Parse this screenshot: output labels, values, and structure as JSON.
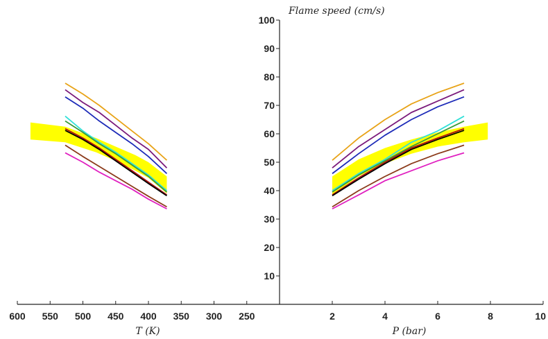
{
  "chart_data": {
    "type": "line",
    "title": "Flame speed (cm/s)",
    "left_panel": {
      "xlabel": "T (K)",
      "xlim": [
        600,
        200
      ],
      "x_ticks": [
        600,
        550,
        500,
        450,
        400,
        350,
        300,
        250
      ],
      "band_color": "#ffff00",
      "band": {
        "x": [
          580,
          527,
          480,
          450,
          420,
          400,
          372
        ],
        "lower": [
          58.0,
          57.0,
          53.5,
          50.5,
          47.0,
          44.5,
          39.0
        ],
        "upper": [
          64.0,
          62.5,
          58.5,
          55.5,
          52.5,
          50.0,
          45.0
        ]
      },
      "series": [
        {
          "color": "#e8a317",
          "x": [
            527,
            500,
            475,
            450,
            425,
            400,
            372
          ],
          "y": [
            77.8,
            74.0,
            70.0,
            65.5,
            61.0,
            56.5,
            50.7
          ]
        },
        {
          "color": "#7b1a7b",
          "x": [
            527,
            500,
            475,
            450,
            425,
            400,
            372
          ],
          "y": [
            75.5,
            71.0,
            67.5,
            63.0,
            58.5,
            54.5,
            48.0
          ]
        },
        {
          "color": "#1c2ab8",
          "x": [
            527,
            500,
            475,
            450,
            425,
            400,
            372
          ],
          "y": [
            73.0,
            69.0,
            64.5,
            60.5,
            56.5,
            52.0,
            46.0
          ]
        },
        {
          "color": "#30e0d8",
          "x": [
            527,
            500,
            475,
            450,
            425,
            400,
            372
          ],
          "y": [
            66.2,
            61.0,
            57.0,
            53.5,
            49.5,
            45.5,
            40.0
          ]
        },
        {
          "color": "#3a9a3a",
          "x": [
            527,
            500,
            475,
            450,
            425,
            400,
            372
          ],
          "y": [
            64.5,
            60.5,
            56.5,
            53.0,
            49.0,
            45.0,
            39.5
          ]
        },
        {
          "color": "#b01010",
          "x": [
            527,
            500,
            475,
            450,
            425,
            400,
            372
          ],
          "y": [
            61.8,
            58.5,
            55.0,
            51.0,
            47.0,
            43.0,
            38.5
          ]
        },
        {
          "color": "#000000",
          "x": [
            527,
            500,
            475,
            450,
            425,
            400,
            372
          ],
          "y": [
            61.2,
            58.0,
            54.5,
            50.5,
            46.5,
            42.5,
            38.2
          ]
        },
        {
          "color": "#8b3a1a",
          "x": [
            527,
            500,
            475,
            450,
            425,
            400,
            372
          ],
          "y": [
            56.0,
            52.0,
            48.5,
            45.0,
            41.5,
            38.0,
            34.3
          ]
        },
        {
          "color": "#e020c0",
          "x": [
            527,
            500,
            475,
            450,
            425,
            400,
            372
          ],
          "y": [
            53.3,
            50.0,
            46.5,
            43.5,
            40.5,
            37.0,
            33.6
          ]
        }
      ]
    },
    "right_panel": {
      "xlabel": "P (bar)",
      "xlim": [
        0,
        10
      ],
      "x_ticks": [
        2,
        4,
        6,
        8,
        10
      ],
      "band_color": "#ffff00",
      "band": {
        "x": [
          2,
          3,
          4,
          5,
          6,
          7,
          7.9
        ],
        "lower": [
          38.5,
          45.0,
          49.5,
          53.0,
          55.5,
          57.0,
          58.0
        ],
        "upper": [
          45.0,
          51.0,
          55.0,
          58.0,
          60.5,
          62.5,
          64.0
        ]
      },
      "series": [
        {
          "color": "#e8a317",
          "x": [
            2,
            3,
            4,
            5,
            6,
            7
          ],
          "y": [
            50.7,
            58.5,
            65.0,
            70.5,
            74.5,
            77.8
          ]
        },
        {
          "color": "#7b1a7b",
          "x": [
            2,
            3,
            4,
            5,
            6,
            7
          ],
          "y": [
            48.0,
            55.5,
            61.5,
            67.5,
            71.5,
            75.5
          ]
        },
        {
          "color": "#1c2ab8",
          "x": [
            2,
            3,
            4,
            5,
            6,
            7
          ],
          "y": [
            46.0,
            53.0,
            59.5,
            65.0,
            69.5,
            73.0
          ]
        },
        {
          "color": "#30e0d8",
          "x": [
            2,
            3,
            4,
            5,
            6,
            7
          ],
          "y": [
            40.0,
            46.0,
            51.0,
            57.0,
            61.0,
            66.2
          ]
        },
        {
          "color": "#3a9a3a",
          "x": [
            2,
            3,
            4,
            5,
            6,
            7
          ],
          "y": [
            39.5,
            45.5,
            50.5,
            55.5,
            60.0,
            64.5
          ]
        },
        {
          "color": "#b01010",
          "x": [
            2,
            3,
            4,
            5,
            6,
            7
          ],
          "y": [
            38.5,
            44.5,
            50.0,
            55.0,
            58.5,
            61.8
          ]
        },
        {
          "color": "#000000",
          "x": [
            2,
            3,
            4,
            5,
            6,
            7
          ],
          "y": [
            38.2,
            44.0,
            49.5,
            54.5,
            58.0,
            61.2
          ]
        },
        {
          "color": "#8b3a1a",
          "x": [
            2,
            3,
            4,
            5,
            6,
            7
          ],
          "y": [
            34.3,
            40.0,
            45.0,
            49.5,
            53.0,
            56.0
          ]
        },
        {
          "color": "#e020c0",
          "x": [
            2,
            3,
            4,
            5,
            6,
            7
          ],
          "y": [
            33.6,
            38.5,
            43.5,
            47.0,
            50.5,
            53.3
          ]
        }
      ]
    },
    "y_axis": {
      "ylim": [
        0,
        100
      ],
      "ticks": [
        10,
        20,
        30,
        40,
        50,
        60,
        70,
        80,
        90,
        100
      ]
    },
    "grid": false
  }
}
